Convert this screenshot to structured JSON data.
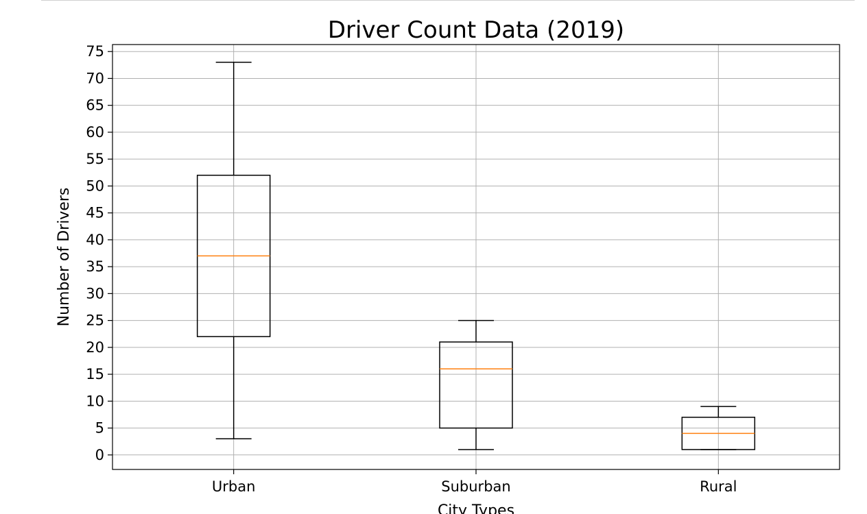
{
  "chart_data": {
    "type": "box",
    "title": "Driver Count Data (2019)",
    "xlabel": "City Types",
    "ylabel": "Number of Drivers",
    "ylim": [
      -2.7,
      76.3
    ],
    "yticks": [
      0,
      5,
      10,
      15,
      20,
      25,
      30,
      35,
      40,
      45,
      50,
      55,
      60,
      65,
      70,
      75
    ],
    "grid": true,
    "categories": [
      "Urban",
      "Suburban",
      "Rural"
    ],
    "boxes": [
      {
        "category": "Urban",
        "whisker_low": 3,
        "q1": 22,
        "median": 37,
        "q3": 52,
        "whisker_high": 73
      },
      {
        "category": "Suburban",
        "whisker_low": 1,
        "q1": 5,
        "median": 16,
        "q3": 21,
        "whisker_high": 25
      },
      {
        "category": "Rural",
        "whisker_low": 1,
        "q1": 1,
        "median": 4,
        "q3": 7,
        "whisker_high": 9
      }
    ],
    "colors": {
      "box": "#000000",
      "median": "#ff7f0e",
      "grid": "#b0b0b0"
    }
  }
}
